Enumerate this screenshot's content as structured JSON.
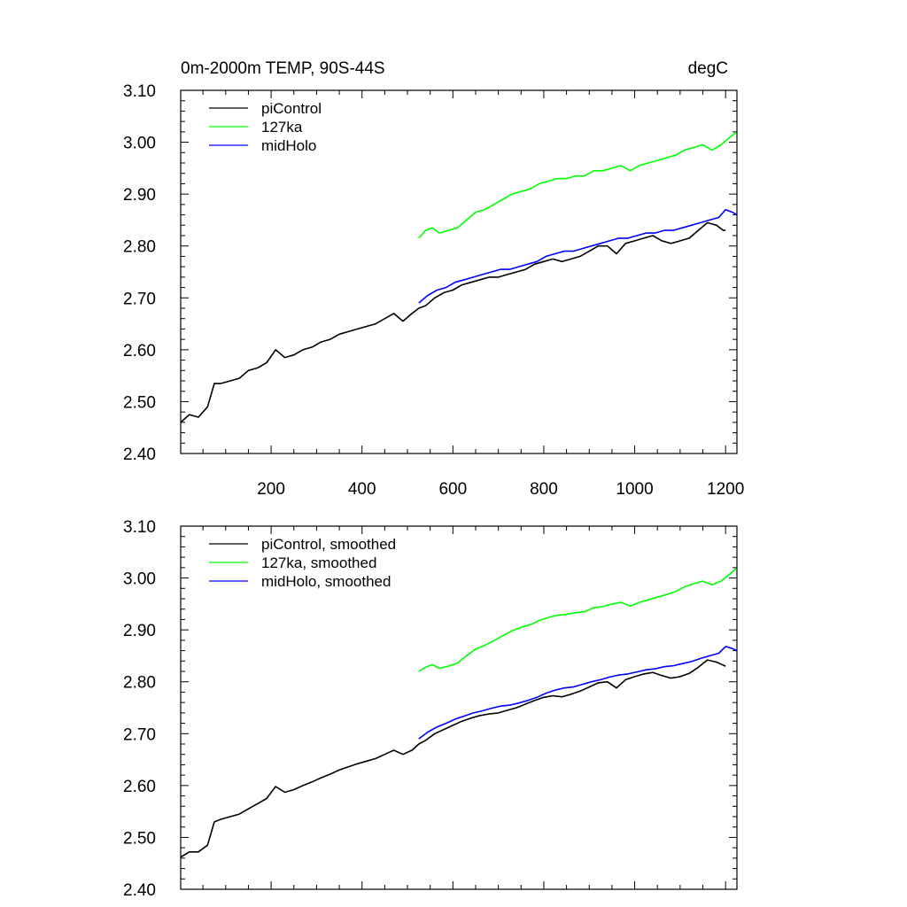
{
  "chart_data": [
    {
      "type": "line",
      "title": "0m-2000m TEMP, 90S-44S",
      "units": "degC",
      "xlim": [
        1,
        1225
      ],
      "ylim": [
        2.4,
        3.1
      ],
      "xticks": [
        200,
        400,
        600,
        800,
        1000,
        1200
      ],
      "xtick_labels": [
        "200",
        "400",
        "600",
        "800",
        "1000",
        "1200"
      ],
      "yticks": [
        2.4,
        2.5,
        2.6,
        2.7,
        2.8,
        2.9,
        3.0,
        3.1
      ],
      "ytick_labels": [
        "2.40",
        "2.50",
        "2.60",
        "2.70",
        "2.80",
        "2.90",
        "3.00",
        "3.10"
      ],
      "legend_position": "top-left",
      "series": [
        {
          "name": "piControl",
          "color": "#000000",
          "x": [
            1,
            20,
            40,
            60,
            75,
            90,
            110,
            130,
            150,
            170,
            190,
            210,
            230,
            250,
            270,
            290,
            310,
            330,
            350,
            370,
            390,
            410,
            430,
            450,
            470,
            490,
            510,
            525,
            540,
            560,
            580,
            600,
            620,
            640,
            660,
            680,
            700,
            720,
            740,
            760,
            780,
            800,
            820,
            840,
            860,
            880,
            900,
            920,
            940,
            960,
            980,
            1000,
            1020,
            1040,
            1060,
            1080,
            1100,
            1120,
            1140,
            1160,
            1180,
            1195,
            1200
          ],
          "y": [
            2.46,
            2.475,
            2.47,
            2.49,
            2.535,
            2.535,
            2.54,
            2.545,
            2.56,
            2.565,
            2.575,
            2.6,
            2.585,
            2.59,
            2.6,
            2.605,
            2.615,
            2.62,
            2.63,
            2.635,
            2.64,
            2.645,
            2.65,
            2.66,
            2.67,
            2.655,
            2.67,
            2.68,
            2.685,
            2.7,
            2.71,
            2.715,
            2.725,
            2.73,
            2.735,
            2.74,
            2.74,
            2.745,
            2.75,
            2.755,
            2.765,
            2.77,
            2.775,
            2.77,
            2.775,
            2.78,
            2.79,
            2.8,
            2.8,
            2.785,
            2.805,
            2.81,
            2.815,
            2.82,
            2.81,
            2.805,
            2.81,
            2.815,
            2.83,
            2.845,
            2.84,
            2.83,
            2.83
          ]
        },
        {
          "name": "127ka",
          "color": "#00ff00",
          "x": [
            525,
            540,
            555,
            570,
            590,
            610,
            630,
            650,
            670,
            690,
            710,
            730,
            750,
            770,
            790,
            810,
            830,
            850,
            870,
            890,
            910,
            930,
            950,
            970,
            990,
            1010,
            1030,
            1050,
            1070,
            1090,
            1110,
            1130,
            1150,
            1170,
            1190,
            1210,
            1225
          ],
          "y": [
            2.815,
            2.83,
            2.835,
            2.825,
            2.83,
            2.835,
            2.85,
            2.865,
            2.87,
            2.88,
            2.89,
            2.9,
            2.905,
            2.91,
            2.92,
            2.925,
            2.93,
            2.93,
            2.935,
            2.935,
            2.945,
            2.945,
            2.95,
            2.955,
            2.945,
            2.955,
            2.96,
            2.965,
            2.97,
            2.975,
            2.985,
            2.99,
            2.995,
            2.985,
            2.995,
            3.01,
            3.02
          ]
        },
        {
          "name": "midHolo",
          "color": "#0000ff",
          "x": [
            525,
            545,
            565,
            585,
            605,
            625,
            645,
            665,
            685,
            705,
            725,
            745,
            765,
            785,
            805,
            825,
            845,
            865,
            885,
            905,
            925,
            945,
            965,
            985,
            1005,
            1025,
            1045,
            1065,
            1085,
            1105,
            1125,
            1145,
            1165,
            1185,
            1200,
            1215,
            1225
          ],
          "y": [
            2.69,
            2.705,
            2.715,
            2.72,
            2.73,
            2.735,
            2.74,
            2.745,
            2.75,
            2.755,
            2.755,
            2.76,
            2.765,
            2.77,
            2.78,
            2.785,
            2.79,
            2.79,
            2.795,
            2.8,
            2.805,
            2.81,
            2.815,
            2.815,
            2.82,
            2.825,
            2.825,
            2.83,
            2.83,
            2.835,
            2.84,
            2.845,
            2.85,
            2.855,
            2.87,
            2.865,
            2.86
          ]
        }
      ]
    },
    {
      "type": "line",
      "title": "",
      "xlim": [
        1,
        1225
      ],
      "ylim": [
        2.4,
        3.1
      ],
      "xticks": [
        200,
        400,
        600,
        800,
        1000,
        1200
      ],
      "yticks": [
        2.4,
        2.5,
        2.6,
        2.7,
        2.8,
        2.9,
        3.0,
        3.1
      ],
      "ytick_labels": [
        "2.40",
        "2.50",
        "2.60",
        "2.70",
        "2.80",
        "2.90",
        "3.00",
        "3.10"
      ],
      "legend_position": "top-left",
      "series": [
        {
          "name": "piControl, smoothed",
          "color": "#000000",
          "x": [
            1,
            20,
            40,
            60,
            75,
            90,
            110,
            130,
            150,
            170,
            190,
            210,
            230,
            250,
            270,
            290,
            310,
            330,
            350,
            370,
            390,
            410,
            430,
            450,
            470,
            490,
            510,
            525,
            540,
            560,
            580,
            600,
            620,
            640,
            660,
            680,
            700,
            720,
            740,
            760,
            780,
            800,
            820,
            840,
            860,
            880,
            900,
            920,
            940,
            960,
            980,
            1000,
            1020,
            1040,
            1060,
            1080,
            1100,
            1120,
            1140,
            1160,
            1180,
            1195,
            1200
          ],
          "y": [
            2.462,
            2.472,
            2.472,
            2.485,
            2.53,
            2.535,
            2.54,
            2.545,
            2.555,
            2.565,
            2.575,
            2.598,
            2.587,
            2.592,
            2.6,
            2.607,
            2.615,
            2.622,
            2.63,
            2.636,
            2.642,
            2.647,
            2.652,
            2.66,
            2.668,
            2.66,
            2.668,
            2.68,
            2.687,
            2.7,
            2.708,
            2.716,
            2.724,
            2.73,
            2.735,
            2.738,
            2.74,
            2.745,
            2.75,
            2.757,
            2.764,
            2.77,
            2.773,
            2.771,
            2.776,
            2.782,
            2.79,
            2.798,
            2.8,
            2.788,
            2.804,
            2.81,
            2.815,
            2.818,
            2.812,
            2.807,
            2.81,
            2.816,
            2.828,
            2.842,
            2.838,
            2.832,
            2.83
          ]
        },
        {
          "name": "127ka, smoothed",
          "color": "#00ff00",
          "x": [
            525,
            540,
            555,
            570,
            590,
            610,
            630,
            650,
            670,
            690,
            710,
            730,
            750,
            770,
            790,
            810,
            830,
            850,
            870,
            890,
            910,
            930,
            950,
            970,
            990,
            1010,
            1030,
            1050,
            1070,
            1090,
            1110,
            1130,
            1150,
            1170,
            1190,
            1210,
            1225
          ],
          "y": [
            2.82,
            2.828,
            2.833,
            2.826,
            2.83,
            2.836,
            2.85,
            2.863,
            2.87,
            2.879,
            2.889,
            2.898,
            2.905,
            2.91,
            2.918,
            2.924,
            2.928,
            2.93,
            2.933,
            2.935,
            2.943,
            2.945,
            2.95,
            2.953,
            2.946,
            2.953,
            2.958,
            2.963,
            2.968,
            2.974,
            2.983,
            2.989,
            2.994,
            2.987,
            2.994,
            3.008,
            3.02
          ]
        },
        {
          "name": "midHolo, smoothed",
          "color": "#0000ff",
          "x": [
            525,
            545,
            565,
            585,
            605,
            625,
            645,
            665,
            685,
            705,
            725,
            745,
            765,
            785,
            805,
            825,
            845,
            865,
            885,
            905,
            925,
            945,
            965,
            985,
            1005,
            1025,
            1045,
            1065,
            1085,
            1105,
            1125,
            1145,
            1165,
            1185,
            1200,
            1215,
            1225
          ],
          "y": [
            2.69,
            2.703,
            2.713,
            2.72,
            2.728,
            2.734,
            2.74,
            2.744,
            2.749,
            2.753,
            2.755,
            2.759,
            2.764,
            2.77,
            2.778,
            2.784,
            2.788,
            2.79,
            2.795,
            2.8,
            2.804,
            2.809,
            2.813,
            2.815,
            2.819,
            2.823,
            2.825,
            2.829,
            2.831,
            2.835,
            2.839,
            2.845,
            2.85,
            2.855,
            2.868,
            2.864,
            2.86
          ]
        }
      ]
    }
  ]
}
